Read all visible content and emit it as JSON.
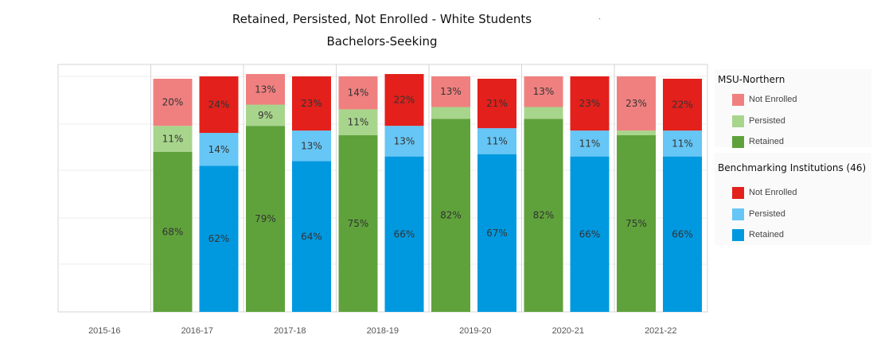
{
  "chart_data": {
    "type": "bar",
    "title": "Retained, Persisted, Not Enrolled - White Students",
    "subtitle": "Bachelors-Seeking",
    "stray_mark": "`",
    "categories": [
      "2015-16",
      "2016-17",
      "2017-18",
      "2018-19",
      "2019-20",
      "2020-21",
      "2021-22"
    ],
    "stacked": true,
    "ylim": [
      0,
      100
    ],
    "groups": [
      {
        "name": "MSU-Northern",
        "series": [
          {
            "name": "Retained",
            "color": "#5fa23b",
            "values": [
              null,
              68,
              79,
              75,
              82,
              82,
              75
            ],
            "labels": [
              "",
              "68%",
              "79%",
              "75%",
              "82%",
              "82%",
              "75%"
            ]
          },
          {
            "name": "Persisted",
            "color": "#a8d58c",
            "values": [
              null,
              11,
              9,
              11,
              5,
              5,
              2
            ],
            "labels": [
              "",
              "11%",
              "9%",
              "11%",
              "",
              "",
              ""
            ]
          },
          {
            "name": "Not Enrolled",
            "color": "#f08080",
            "values": [
              null,
              20,
              13,
              14,
              13,
              13,
              23
            ],
            "labels": [
              "",
              "20%",
              "13%",
              "14%",
              "13%",
              "13%",
              "23%"
            ]
          }
        ]
      },
      {
        "name": "Benchmarking Institutions",
        "series": [
          {
            "name": "Retained",
            "color": "#0099e0",
            "values": [
              null,
              62,
              64,
              66,
              67,
              66,
              66
            ],
            "labels": [
              "",
              "62%",
              "64%",
              "66%",
              "67%",
              "66%",
              "66%"
            ]
          },
          {
            "name": "Persisted",
            "color": "#66c6f5",
            "values": [
              null,
              14,
              13,
              13,
              11,
              11,
              11
            ],
            "labels": [
              "",
              "14%",
              "13%",
              "13%",
              "11%",
              "11%",
              "11%"
            ]
          },
          {
            "name": "Not Enrolled",
            "color": "#e3201b",
            "values": [
              null,
              24,
              23,
              22,
              21,
              23,
              22
            ],
            "labels": [
              "",
              "24%",
              "23%",
              "22%",
              "21%",
              "23%",
              "22%"
            ]
          }
        ]
      }
    ],
    "legend_position": "right"
  },
  "legend": {
    "group1": {
      "title": "MSU-Northern",
      "items": [
        {
          "label": "Not Enrolled",
          "color": "#f08080"
        },
        {
          "label": "Persisted",
          "color": "#a8d58c"
        },
        {
          "label": "Retained",
          "color": "#5fa23b"
        }
      ]
    },
    "group2": {
      "title": "Benchmarking Institutions",
      "count": "(46)",
      "items": [
        {
          "label": "Not Enrolled",
          "color": "#e3201b"
        },
        {
          "label": "Persisted",
          "color": "#66c6f5"
        },
        {
          "label": "Retained",
          "color": "#0099e0"
        }
      ]
    }
  }
}
